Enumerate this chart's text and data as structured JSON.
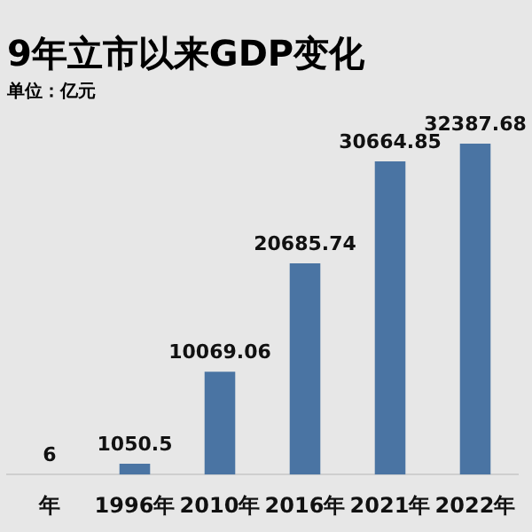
{
  "chart_data": {
    "type": "bar",
    "title": "9年立市以来GDP变化",
    "subtitle": "单位：亿元",
    "categories": [
      "年",
      "1996年",
      "2010年",
      "2016年",
      "2021年",
      "2022年"
    ],
    "values": [
      6,
      1050.5,
      10069.06,
      20685.74,
      30664.85,
      32387.68
    ],
    "color": "#4a74a3",
    "data_labels": true,
    "grid": false,
    "legend": false
  }
}
